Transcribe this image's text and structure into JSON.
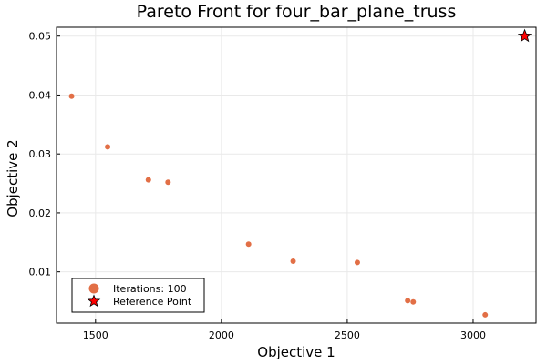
{
  "chart_data": {
    "type": "scatter",
    "title": "Pareto Front for four_bar_plane_truss",
    "xlabel": "Objective 1",
    "ylabel": "Objective 2",
    "xlim": [
      1345,
      3250
    ],
    "ylim": [
      0.0013,
      0.0515
    ],
    "xticks": [
      1500,
      2000,
      2500,
      3000
    ],
    "xtick_labels": [
      "1500",
      "2000",
      "2500",
      "3000"
    ],
    "yticks": [
      0.01,
      0.02,
      0.03,
      0.04,
      0.05
    ],
    "ytick_labels": [
      "0.01",
      "0.02",
      "0.03",
      "0.04",
      "0.05"
    ],
    "grid": true,
    "legend_position": "bottom-left",
    "series": [
      {
        "name": "Iterations: 100",
        "marker": "circle",
        "color": "#e26f46",
        "points": [
          {
            "x": 1405,
            "y": 0.0398
          },
          {
            "x": 1548,
            "y": 0.0312
          },
          {
            "x": 1710,
            "y": 0.0256
          },
          {
            "x": 1788,
            "y": 0.0252
          },
          {
            "x": 2108,
            "y": 0.0147
          },
          {
            "x": 2285,
            "y": 0.0118
          },
          {
            "x": 2540,
            "y": 0.0116
          },
          {
            "x": 2740,
            "y": 0.0051
          },
          {
            "x": 2762,
            "y": 0.0049
          },
          {
            "x": 3048,
            "y": 0.0027
          }
        ]
      },
      {
        "name": "Reference Point",
        "marker": "star",
        "color": "#ff0000",
        "points": [
          {
            "x": 3205,
            "y": 0.05
          }
        ]
      }
    ]
  }
}
